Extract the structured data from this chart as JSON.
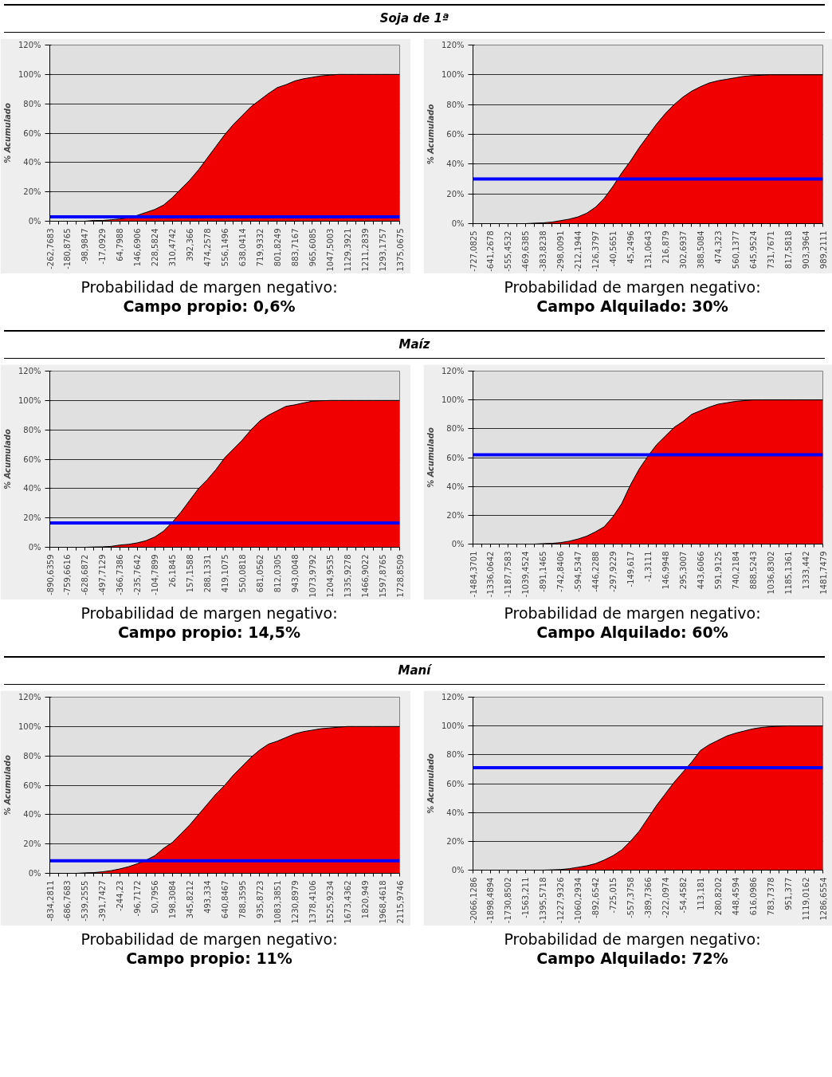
{
  "chart_data": [
    {
      "type": "area",
      "title": "Soja de 1ª",
      "ylabel": "% Acumulado",
      "categories": [
        "-262,7683",
        null,
        "-180,8765",
        null,
        "-98,9847",
        null,
        "-17,0929",
        null,
        "64,7988",
        null,
        "146,6906",
        null,
        "228,5824",
        null,
        "310,4742",
        null,
        "392,366",
        null,
        "474,2578",
        null,
        "556,1496",
        null,
        "638,0414",
        null,
        "719,9332",
        null,
        "801,8249",
        null,
        "883,7167",
        null,
        "965,6085",
        null,
        "1047,5003",
        null,
        "1129,3921",
        null,
        "1211,2839",
        null,
        "1293,1757",
        null,
        "1375,0675"
      ],
      "series": [
        {
          "color": "#f00000",
          "values": [
            0,
            0,
            0,
            0,
            0,
            0.5,
            0.5,
            1,
            1.5,
            2.5,
            4,
            6,
            8,
            11,
            16,
            22,
            28,
            35,
            43,
            51,
            59,
            66,
            72,
            78,
            82.5,
            87,
            91,
            93,
            95.5,
            97,
            98,
            99,
            99.5,
            100,
            100,
            100,
            100,
            100,
            100,
            100,
            100
          ]
        }
      ],
      "ylim": [
        0,
        120
      ],
      "yticks": [
        {
          "value": 0,
          "label": "0%"
        },
        {
          "value": 20,
          "label": "20%"
        },
        {
          "value": 40,
          "label": "40%"
        },
        {
          "value": 60,
          "label": "60%"
        },
        {
          "value": 80,
          "label": "80%"
        },
        {
          "value": 100,
          "label": "100%"
        },
        {
          "value": 120,
          "label": "120%"
        }
      ],
      "grid": "y",
      "ref_lines": [
        {
          "axis": "y",
          "value": 3,
          "color": "#0000ff"
        }
      ],
      "annotations": [
        "Probabilidad de margen negativo:",
        "Campo propio: 0,6%"
      ]
    },
    {
      "type": "area",
      "ylabel": "% Acumulado",
      "categories": [
        "-727,0825",
        null,
        "-641,2678",
        null,
        "-555,4532",
        null,
        "-469,6385",
        null,
        "-383,8238",
        null,
        "-298,0091",
        null,
        "-212,1944",
        null,
        "-126,3797",
        null,
        "-40,5651",
        null,
        "45,2496",
        null,
        "131,0643",
        null,
        "216,879",
        null,
        "302,6937",
        null,
        "388,5084",
        null,
        "474,323",
        null,
        "560,1377",
        null,
        "645,9524",
        null,
        "731,7671",
        null,
        "817,5818",
        null,
        "903,3964",
        null,
        "989,2111"
      ],
      "series": [
        {
          "color": "#f00000",
          "values": [
            0,
            0,
            0,
            0,
            0,
            0,
            0,
            0.3,
            0.5,
            1,
            2,
            3,
            4.5,
            7,
            11,
            17,
            25,
            34,
            42,
            51,
            59,
            67,
            74,
            80,
            85,
            89,
            92,
            94.5,
            96,
            97,
            98,
            99,
            99.5,
            99.7,
            100,
            100,
            100,
            100,
            100,
            100,
            100
          ]
        }
      ],
      "ylim": [
        0,
        120
      ],
      "yticks": [
        {
          "value": 0,
          "label": "0%"
        },
        {
          "value": 20,
          "label": "20%"
        },
        {
          "value": 40,
          "label": "40%"
        },
        {
          "value": 60,
          "label": "60%"
        },
        {
          "value": 80,
          "label": "80%"
        },
        {
          "value": 100,
          "label": "100%"
        },
        {
          "value": 120,
          "label": "120%"
        }
      ],
      "grid": "y",
      "ref_lines": [
        {
          "axis": "y",
          "value": 30,
          "color": "#0000ff"
        }
      ],
      "annotations": [
        "Probabilidad de margen negativo:",
        "Campo Alquilado: 30%"
      ]
    },
    {
      "type": "area",
      "title": "Maíz",
      "ylabel": "% Acumulado",
      "categories": [
        "-890,6359",
        null,
        "-759,6616",
        null,
        "-628,6872",
        null,
        "-497,7129",
        null,
        "-366,7386",
        null,
        "-235,7642",
        null,
        "-104,7899",
        null,
        "26,1845",
        null,
        "157,1588",
        null,
        "288,1331",
        null,
        "419,1075",
        null,
        "550,0818",
        null,
        "681,0562",
        null,
        "812,0305",
        null,
        "943,0048",
        null,
        "1073,9792",
        null,
        "1204,9535",
        null,
        "1335,9278",
        null,
        "1466,9022",
        null,
        "1597,8765",
        null,
        "1728,8509"
      ],
      "series": [
        {
          "color": "#f00000",
          "values": [
            0,
            0,
            0,
            0,
            0,
            0.2,
            0.3,
            0.6,
            1.5,
            2,
            3,
            4.5,
            7,
            11,
            17,
            24,
            32,
            40,
            46,
            53,
            61,
            67,
            73,
            80,
            86,
            90,
            93,
            96,
            97,
            98.3,
            99.5,
            99.8,
            100,
            100,
            100,
            100,
            100,
            100,
            100,
            100,
            100
          ]
        }
      ],
      "ylim": [
        0,
        120
      ],
      "yticks": [
        {
          "value": 0,
          "label": "0%"
        },
        {
          "value": 20,
          "label": "20%"
        },
        {
          "value": 40,
          "label": "40%"
        },
        {
          "value": 60,
          "label": "60%"
        },
        {
          "value": 80,
          "label": "80%"
        },
        {
          "value": 100,
          "label": "100%"
        },
        {
          "value": 120,
          "label": "120%"
        }
      ],
      "grid": "y",
      "ref_lines": [
        {
          "axis": "y",
          "value": 16.5,
          "color": "#0000ff"
        }
      ],
      "annotations": [
        "Probabilidad de margen negativo:",
        "Campo propio: 14,5%"
      ]
    },
    {
      "type": "area",
      "ylabel": "% Acumulado",
      "categories": [
        "-1484,3701",
        null,
        "-1336,0642",
        null,
        "-1187,7583",
        null,
        "-1039,4524",
        null,
        "-891,1465",
        null,
        "-742,8406",
        null,
        "-594,5347",
        null,
        "-446,2288",
        null,
        "-297,9229",
        null,
        "-149,617",
        null,
        "-1,3111",
        null,
        "146,9948",
        null,
        "295,3007",
        null,
        "443,6066",
        null,
        "591,9125",
        null,
        "740,2184",
        null,
        "888,5243",
        null,
        "1036,8302",
        null,
        "1185,1361",
        null,
        "1333,442",
        null,
        "1481,7479"
      ],
      "series": [
        {
          "color": "#f00000",
          "values": [
            0,
            0,
            0,
            0,
            0,
            0,
            0,
            0,
            0.3,
            0.5,
            1,
            2,
            3.5,
            5.5,
            8.5,
            12,
            19,
            28,
            41,
            52,
            61,
            69,
            75,
            81,
            85,
            90,
            92.5,
            95,
            97,
            98,
            99,
            99.5,
            100,
            100,
            100,
            100,
            100,
            100,
            100,
            100,
            100
          ]
        }
      ],
      "ylim": [
        0,
        120
      ],
      "yticks": [
        {
          "value": 0,
          "label": "0%"
        },
        {
          "value": 20,
          "label": "20%"
        },
        {
          "value": 40,
          "label": "40%"
        },
        {
          "value": 60,
          "label": "60%"
        },
        {
          "value": 80,
          "label": "80%"
        },
        {
          "value": 100,
          "label": "100%"
        },
        {
          "value": 120,
          "label": "120%"
        }
      ],
      "grid": "y",
      "ref_lines": [
        {
          "axis": "y",
          "value": 62,
          "color": "#0000ff"
        }
      ],
      "annotations": [
        "Probabilidad de margen negativo:",
        "Campo Alquilado: 60%"
      ]
    },
    {
      "type": "area",
      "title": "Maní",
      "ylabel": "% Acumulado",
      "categories": [
        "-834,2811",
        null,
        "-686,7683",
        null,
        "-539,2555",
        null,
        "-391,7427",
        null,
        "-244,23",
        null,
        "-96,7172",
        null,
        "50,7956",
        null,
        "198,3084",
        null,
        "345,8212",
        null,
        "493,334",
        null,
        "640,8467",
        null,
        "788,3595",
        null,
        "935,8723",
        null,
        "1083,3851",
        null,
        "1230,8979",
        null,
        "1378,4106",
        null,
        "1525,9234",
        null,
        "1673,4362",
        null,
        "1820,949",
        null,
        "1968,4618",
        null,
        "2115,9746"
      ],
      "series": [
        {
          "color": "#f00000",
          "values": [
            0,
            0,
            0,
            0,
            0.3,
            0.5,
            1,
            1.8,
            3,
            4.5,
            6.5,
            9,
            12,
            17,
            21,
            27,
            33,
            40,
            47,
            54,
            60,
            67,
            73,
            79,
            84,
            88,
            90,
            92.5,
            95,
            96.5,
            97.5,
            98.5,
            99,
            99.5,
            100,
            100,
            100,
            100,
            100,
            100,
            100
          ]
        }
      ],
      "ylim": [
        0,
        120
      ],
      "yticks": [
        {
          "value": 0,
          "label": "0%"
        },
        {
          "value": 20,
          "label": "20%"
        },
        {
          "value": 40,
          "label": "40%"
        },
        {
          "value": 60,
          "label": "60%"
        },
        {
          "value": 80,
          "label": "80%"
        },
        {
          "value": 100,
          "label": "100%"
        },
        {
          "value": 120,
          "label": "120%"
        }
      ],
      "grid": "y",
      "ref_lines": [
        {
          "axis": "y",
          "value": 8.5,
          "color": "#0000ff"
        }
      ],
      "annotations": [
        "Probabilidad de margen negativo:",
        "Campo propio: 11%"
      ]
    },
    {
      "type": "area",
      "ylabel": "% Acumulado",
      "categories": [
        "-2066,1286",
        null,
        "-1898,4894",
        null,
        "-1730,8502",
        null,
        "-1563,211",
        null,
        "-1395,5718",
        null,
        "-1227,9326",
        null,
        "-1060,2934",
        null,
        "-892,6542",
        null,
        "-725,015",
        null,
        "-557,3758",
        null,
        "-389,7366",
        null,
        "-222,0974",
        null,
        "-54,4582",
        null,
        "113,181",
        null,
        "280,8202",
        null,
        "448,4594",
        null,
        "616,0986",
        null,
        "783,7378",
        null,
        "951,377",
        null,
        "1119,0162",
        null,
        "1286,6554"
      ],
      "series": [
        {
          "color": "#f00000",
          "values": [
            0,
            0,
            0,
            0,
            0,
            0,
            0,
            0,
            0,
            0.2,
            0.4,
            1,
            2,
            3,
            4.5,
            7,
            10,
            14,
            20,
            27,
            36,
            45,
            53,
            61,
            68,
            75,
            83,
            87,
            90,
            93,
            95,
            96.5,
            98,
            99,
            99.5,
            99.8,
            100,
            100,
            100,
            100,
            100
          ]
        }
      ],
      "ylim": [
        0,
        120
      ],
      "yticks": [
        {
          "value": 0,
          "label": "0%"
        },
        {
          "value": 20,
          "label": "20%"
        },
        {
          "value": 40,
          "label": "40%"
        },
        {
          "value": 60,
          "label": "60%"
        },
        {
          "value": 80,
          "label": "80%"
        },
        {
          "value": 100,
          "label": "100%"
        },
        {
          "value": 120,
          "label": "120%"
        }
      ],
      "grid": "y",
      "ref_lines": [
        {
          "axis": "y",
          "value": 71,
          "color": "#0000ff"
        }
      ],
      "annotations": [
        "Probabilidad de margen negativo:",
        "Campo Alquilado: 72%"
      ]
    }
  ]
}
